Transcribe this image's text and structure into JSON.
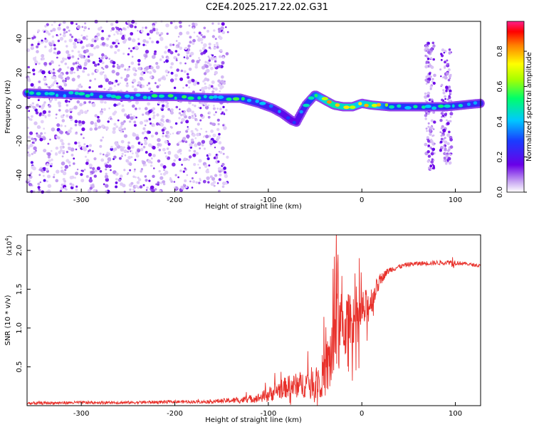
{
  "title": "C2E4.2025.217.22.02.G31",
  "chart_data": [
    {
      "type": "heatmap",
      "xlabel": "Height of straight line (km)",
      "ylabel": "Frequency (Hz)",
      "xlim": [
        -358,
        127
      ],
      "ylim": [
        -50,
        50
      ],
      "xticks": [
        -300,
        -200,
        -100,
        0,
        100
      ],
      "yticks": [
        -40,
        -20,
        0,
        20,
        40
      ],
      "colorbar": {
        "label": "Normalized spectral amplitude",
        "range": [
          0,
          0.97
        ],
        "ticks": [
          0.0,
          0.2,
          0.4,
          0.6,
          0.8
        ]
      },
      "ridge": {
        "x": [
          -355,
          -300,
          -250,
          -200,
          -150,
          -130,
          -110,
          -95,
          -85,
          -75,
          -70,
          -60,
          -50,
          -40,
          -30,
          -20,
          -10,
          0,
          10,
          30,
          60,
          90,
          127
        ],
        "freq": [
          8,
          7,
          6,
          6,
          5,
          5,
          2,
          -1,
          -4,
          -8,
          -9,
          1,
          7,
          4,
          1,
          0,
          0,
          2,
          1,
          0,
          0,
          0,
          2
        ],
        "amp": [
          0.55,
          0.5,
          0.5,
          0.55,
          0.5,
          0.55,
          0.45,
          0.4,
          0.35,
          0.3,
          0.3,
          0.45,
          0.6,
          0.8,
          0.9,
          0.85,
          0.85,
          0.75,
          0.9,
          0.55,
          0.5,
          0.5,
          0.45
        ]
      },
      "noise_extent": {
        "x": [
          -358,
          -143
        ],
        "freq": [
          -50,
          50
        ]
      },
      "noise_bursts": [
        {
          "x": [
            68,
            78
          ],
          "freq": [
            -38,
            38
          ]
        },
        {
          "x": [
            84,
            96
          ],
          "freq": [
            -34,
            34
          ]
        }
      ]
    },
    {
      "type": "line",
      "xlabel": "Height of straight line (km)",
      "ylabel": "SNR (10 * v/v)",
      "y_multiplier": "(x10",
      "y_multiplier_exp": "4",
      "y_multiplier_close": ")",
      "xlim": [
        -358,
        127
      ],
      "ylim": [
        0,
        2.2
      ],
      "xticks": [
        -300,
        -200,
        -100,
        0,
        100
      ],
      "yticks": [
        0.5,
        1.0,
        1.5,
        2.0
      ],
      "ytick_labels": [
        "0.5",
        "1.0",
        "1.5",
        "2.0"
      ],
      "series": [
        {
          "color": "#e8302a",
          "x": [
            -358,
            -300,
            -250,
            -200,
            -170,
            -150,
            -130,
            -110,
            -100,
            -90,
            -80,
            -70,
            -60,
            -50,
            -40,
            -35,
            -30,
            -25,
            -20,
            -15,
            -10,
            -5,
            0,
            5,
            10,
            15,
            20,
            25,
            30,
            40,
            50,
            60,
            80,
            95,
            97,
            100,
            110,
            127
          ],
          "y": [
            0.03,
            0.04,
            0.04,
            0.05,
            0.05,
            0.06,
            0.07,
            0.1,
            0.14,
            0.2,
            0.24,
            0.26,
            0.28,
            0.32,
            0.4,
            0.55,
            0.8,
            0.95,
            1.0,
            1.05,
            1.05,
            1.1,
            1.2,
            1.25,
            1.35,
            1.5,
            1.62,
            1.7,
            1.75,
            1.79,
            1.82,
            1.83,
            1.84,
            1.85,
            1.85,
            1.84,
            1.83,
            1.8
          ],
          "amp": [
            0.02,
            0.02,
            0.02,
            0.02,
            0.02,
            0.03,
            0.04,
            0.06,
            0.1,
            0.12,
            0.14,
            0.16,
            0.18,
            0.2,
            0.3,
            0.45,
            0.6,
            0.55,
            0.45,
            0.4,
            0.35,
            0.3,
            0.3,
            0.25,
            0.2,
            0.12,
            0.08,
            0.05,
            0.04,
            0.03,
            0.03,
            0.03,
            0.03,
            0.03,
            0.1,
            0.03,
            0.02,
            0.02
          ]
        }
      ]
    }
  ]
}
